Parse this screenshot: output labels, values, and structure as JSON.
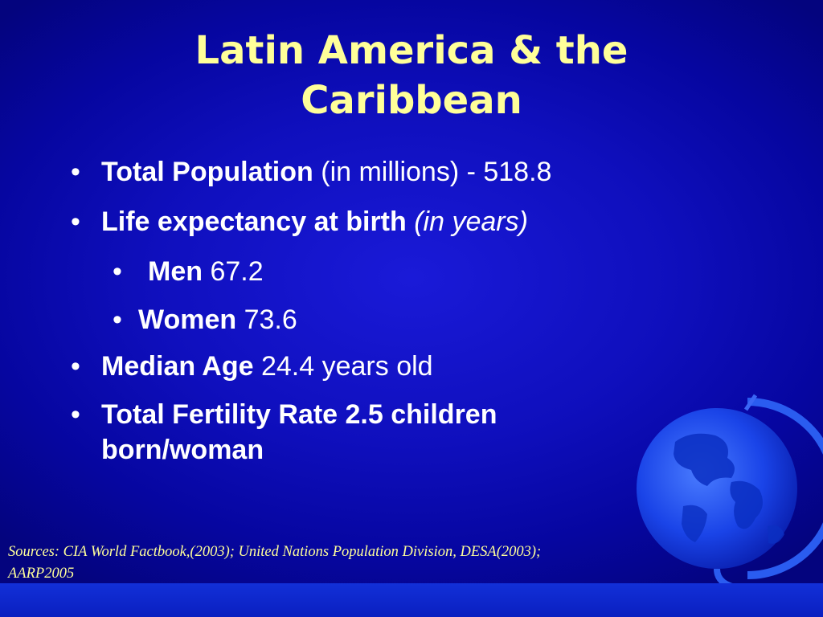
{
  "slide": {
    "title_line1": "Latin America & the",
    "title_line2": "Caribbean",
    "bullet_symbol": "•",
    "items": [
      {
        "bold": "Total Population",
        "rest": " (in millions) - 518.8"
      },
      {
        "bold": "Life expectancy at birth",
        "italic": " (in years)"
      },
      {
        "bold": "Men",
        "rest": " 67.2"
      },
      {
        "bold": "Women",
        "rest": " 73.6"
      },
      {
        "bold": "Median Age",
        "rest": " 24.4 years old"
      },
      {
        "bold_line1": "Total Fertility Rate 2.5 children",
        "bold_line2": "born/woman"
      }
    ],
    "sources_line1": "Sources: CIA World Factbook,(2003); United Nations Population Division, DESA(2003);",
    "sources_line2": "AARP2005"
  },
  "colors": {
    "background": "#0f0fbd",
    "title": "#ffff99",
    "body_text": "#ffffff",
    "sources_text": "#ffff99",
    "bottom_bar": "#1230d8"
  },
  "icons": [
    "globe-icon"
  ]
}
